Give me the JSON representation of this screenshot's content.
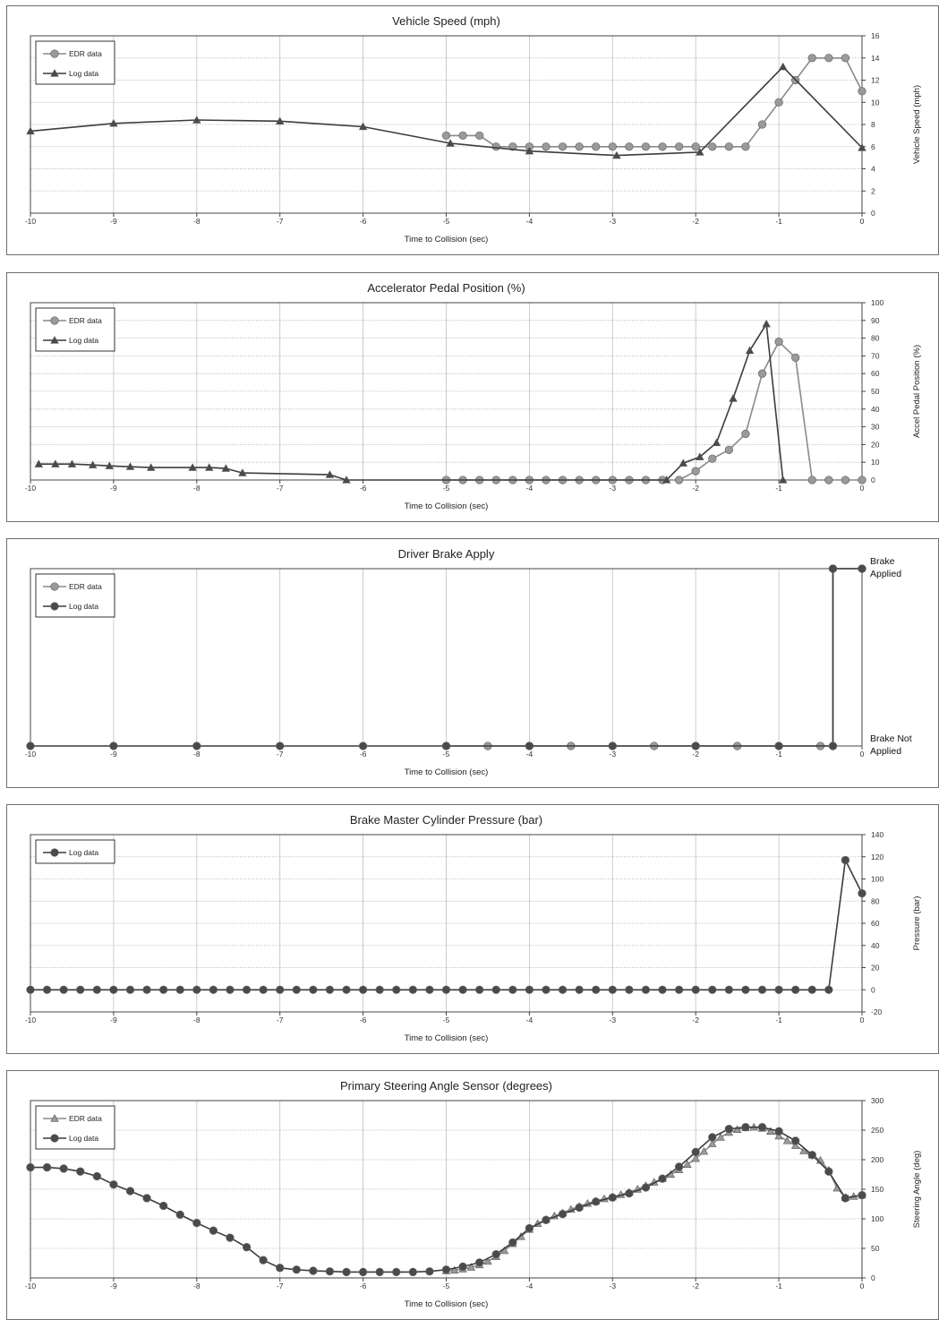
{
  "x_axis": {
    "label": "Time to Collision (sec)",
    "ticks": [
      "-10",
      "-9",
      "-8",
      "-7",
      "-6",
      "-5",
      "-4",
      "-3",
      "-2",
      "-1",
      "0"
    ]
  },
  "colors": {
    "edr": "#8a8a8a",
    "log": "#3c3c3c",
    "marker_edr": "#9a9a9a",
    "marker_log": "#4a4a4a"
  },
  "chart_data": [
    {
      "type": "line",
      "title": "Vehicle Speed (mph)",
      "xlabel": "Time to Collision (sec)",
      "ylabel": "Vehicle Speed (mph)",
      "xlim": [
        -10,
        0
      ],
      "ylim": [
        0,
        16
      ],
      "yticks": [
        "0",
        "2",
        "4",
        "6",
        "8",
        "10",
        "12",
        "14",
        "16"
      ],
      "legend": "top-left",
      "series": [
        {
          "name": "EDR data",
          "marker": "circle",
          "x": [
            -5.0,
            -4.8,
            -4.6,
            -4.4,
            -4.2,
            -4.0,
            -3.8,
            -3.6,
            -3.4,
            -3.2,
            -3.0,
            -2.8,
            -2.6,
            -2.4,
            -2.2,
            -2.0,
            -1.8,
            -1.6,
            -1.4,
            -1.2,
            -1.0,
            -0.8,
            -0.6,
            -0.4,
            -0.2,
            0.0
          ],
          "y": [
            7,
            7,
            7,
            6,
            6,
            6,
            6,
            6,
            6,
            6,
            6,
            6,
            6,
            6,
            6,
            6,
            6,
            6,
            6,
            8,
            10,
            12,
            14,
            14,
            14,
            11
          ]
        },
        {
          "name": "Log data",
          "marker": "triangle",
          "x": [
            -10,
            -9,
            -8,
            -7,
            -6,
            -4.95,
            -4.0,
            -2.95,
            -1.95,
            -0.95,
            0.0
          ],
          "y": [
            7.4,
            8.1,
            8.4,
            8.3,
            7.8,
            6.3,
            5.6,
            5.2,
            5.5,
            13.2,
            5.9
          ]
        }
      ]
    },
    {
      "type": "line",
      "title": "Accelerator Pedal Position (%)",
      "xlabel": "Time to Collision (sec)",
      "ylabel": "Accel Pedal Position (%)",
      "xlim": [
        -10,
        0
      ],
      "ylim": [
        0,
        100
      ],
      "yticks": [
        "0",
        "10",
        "20",
        "30",
        "40",
        "50",
        "60",
        "70",
        "80",
        "90",
        "100"
      ],
      "legend": "top-left",
      "series": [
        {
          "name": "EDR data",
          "marker": "circle",
          "x": [
            -5.0,
            -4.8,
            -4.6,
            -4.4,
            -4.2,
            -4.0,
            -3.8,
            -3.6,
            -3.4,
            -3.2,
            -3.0,
            -2.8,
            -2.6,
            -2.4,
            -2.2,
            -2.0,
            -1.8,
            -1.6,
            -1.4,
            -1.2,
            -1.0,
            -0.8,
            -0.6,
            -0.4,
            -0.2,
            0.0
          ],
          "y": [
            0,
            0,
            0,
            0,
            0,
            0,
            0,
            0,
            0,
            0,
            0,
            0,
            0,
            0,
            0,
            5,
            12,
            17,
            26,
            60,
            78,
            69,
            0,
            0,
            0,
            0
          ]
        },
        {
          "name": "Log data",
          "marker": "triangle",
          "x": [
            -9.9,
            -9.7,
            -9.5,
            -9.25,
            -9.05,
            -8.8,
            -8.55,
            -8.05,
            -7.85,
            -7.65,
            -7.45,
            -6.4,
            -6.2,
            -2.35,
            -2.15,
            -1.95,
            -1.75,
            -1.55,
            -1.35,
            -1.15,
            -0.95
          ],
          "y": [
            9,
            9,
            9,
            8.5,
            8,
            7.5,
            7,
            7,
            7,
            6.5,
            4,
            3,
            0,
            0,
            9.5,
            13,
            21,
            46,
            73,
            88,
            0
          ]
        }
      ]
    },
    {
      "type": "line",
      "title": "Driver Brake Apply",
      "xlabel": "Time to Collision (sec)",
      "ylabel": "",
      "xlim": [
        -10,
        0
      ],
      "ylim": [
        0,
        1
      ],
      "category_labels": [
        {
          "value": 1,
          "lines": [
            "Brake",
            "Applied"
          ]
        },
        {
          "value": 0,
          "lines": [
            "Brake Not",
            "Applied"
          ]
        }
      ],
      "legend": "top-left",
      "series": [
        {
          "name": "EDR data",
          "marker": "circle",
          "x": [
            -5.0,
            -4.5,
            -4.0,
            -3.5,
            -3.0,
            -2.5,
            -2.0,
            -1.5,
            -1.0,
            -0.5,
            -0.35,
            -0.35,
            0.0
          ],
          "y": [
            0,
            0,
            0,
            0,
            0,
            0,
            0,
            0,
            0,
            0,
            0,
            1,
            1
          ]
        },
        {
          "name": "Log data",
          "marker": "circle",
          "x": [
            -10,
            -9,
            -8,
            -7,
            -6,
            -5,
            -4,
            -3,
            -2,
            -1,
            -0.35,
            -0.35,
            0.0
          ],
          "y": [
            0,
            0,
            0,
            0,
            0,
            0,
            0,
            0,
            0,
            0,
            0,
            1,
            1
          ]
        }
      ]
    },
    {
      "type": "line",
      "title": "Brake Master Cylinder Pressure (bar)",
      "xlabel": "Time to Collision (sec)",
      "ylabel": "Pressure (bar)",
      "xlim": [
        -10,
        0
      ],
      "ylim": [
        -20,
        140
      ],
      "yticks": [
        "-20",
        "0",
        "20",
        "40",
        "60",
        "80",
        "100",
        "120",
        "140"
      ],
      "legend": "top-left",
      "series": [
        {
          "name": "Log data",
          "marker": "circle",
          "x": [
            -10.0,
            -9.8,
            -9.6,
            -9.4,
            -9.2,
            -9.0,
            -8.8,
            -8.6,
            -8.4,
            -8.2,
            -8.0,
            -7.8,
            -7.6,
            -7.4,
            -7.2,
            -7.0,
            -6.8,
            -6.6,
            -6.4,
            -6.2,
            -6.0,
            -5.8,
            -5.6,
            -5.4,
            -5.2,
            -5.0,
            -4.8,
            -4.6,
            -4.4,
            -4.2,
            -4.0,
            -3.8,
            -3.6,
            -3.4,
            -3.2,
            -3.0,
            -2.8,
            -2.6,
            -2.4,
            -2.2,
            -2.0,
            -1.8,
            -1.6,
            -1.4,
            -1.2,
            -1.0,
            -0.8,
            -0.6,
            -0.4,
            -0.2,
            0.0
          ],
          "y": [
            0,
            0,
            0,
            0,
            0,
            0,
            0,
            0,
            0,
            0,
            0,
            0,
            0,
            0,
            0,
            0,
            0,
            0,
            0,
            0,
            0,
            0,
            0,
            0,
            0,
            0,
            0,
            0,
            0,
            0,
            0,
            0,
            0,
            0,
            0,
            0,
            0,
            0,
            0,
            0,
            0,
            0,
            0,
            0,
            0,
            0,
            0,
            0,
            0,
            117,
            87
          ]
        }
      ]
    },
    {
      "type": "line",
      "title": "Primary Steering Angle Sensor (degrees)",
      "xlabel": "Time to Collision (sec)",
      "ylabel": "Steering Angle (deg)",
      "xlim": [
        -10,
        0
      ],
      "ylim": [
        0,
        300
      ],
      "yticks": [
        "0",
        "50",
        "100",
        "150",
        "200",
        "250",
        "300"
      ],
      "legend": "top-left",
      "series": [
        {
          "name": "EDR data",
          "marker": "triangle",
          "x": [
            -5.0,
            -4.9,
            -4.8,
            -4.7,
            -4.6,
            -4.5,
            -4.4,
            -4.3,
            -4.2,
            -4.1,
            -4.0,
            -3.9,
            -3.8,
            -3.7,
            -3.6,
            -3.5,
            -3.4,
            -3.3,
            -3.2,
            -3.1,
            -3.0,
            -2.9,
            -2.8,
            -2.7,
            -2.6,
            -2.5,
            -2.4,
            -2.3,
            -2.2,
            -2.1,
            -2.0,
            -1.9,
            -1.8,
            -1.7,
            -1.6,
            -1.5,
            -1.4,
            -1.3,
            -1.2,
            -1.1,
            -1.0,
            -0.9,
            -0.8,
            -0.7,
            -0.6,
            -0.5,
            -0.4,
            -0.3,
            -0.2,
            -0.1,
            0.0
          ],
          "y": [
            12,
            13,
            15,
            18,
            22,
            28,
            36,
            46,
            58,
            70,
            82,
            92,
            99,
            105,
            110,
            116,
            121,
            126,
            130,
            134,
            137,
            141,
            145,
            150,
            156,
            162,
            168,
            175,
            183,
            192,
            202,
            214,
            227,
            238,
            246,
            251,
            254,
            255,
            253,
            248,
            240,
            232,
            224,
            215,
            208,
            199,
            182,
            152,
            136,
            138,
            140
          ]
        },
        {
          "name": "Log data",
          "marker": "circle",
          "x": [
            -10.0,
            -9.8,
            -9.6,
            -9.4,
            -9.2,
            -9.0,
            -8.8,
            -8.6,
            -8.4,
            -8.2,
            -8.0,
            -7.8,
            -7.6,
            -7.4,
            -7.2,
            -7.0,
            -6.8,
            -6.6,
            -6.4,
            -6.2,
            -6.0,
            -5.8,
            -5.6,
            -5.4,
            -5.2,
            -5.0,
            -4.8,
            -4.6,
            -4.4,
            -4.2,
            -4.0,
            -3.8,
            -3.6,
            -3.4,
            -3.2,
            -3.0,
            -2.8,
            -2.6,
            -2.4,
            -2.2,
            -2.0,
            -1.8,
            -1.6,
            -1.4,
            -1.2,
            -1.0,
            -0.8,
            -0.6,
            -0.4,
            -0.2,
            0.0
          ],
          "y": [
            187,
            187,
            185,
            180,
            172,
            158,
            147,
            135,
            122,
            107,
            93,
            80,
            68,
            52,
            30,
            17,
            14,
            12,
            11,
            10,
            10,
            10,
            10,
            10,
            11,
            14,
            19,
            26,
            40,
            60,
            84,
            98,
            108,
            119,
            129,
            136,
            143,
            153,
            168,
            188,
            213,
            238,
            252,
            255,
            255,
            248,
            232,
            208,
            180,
            135,
            140
          ]
        }
      ]
    }
  ]
}
